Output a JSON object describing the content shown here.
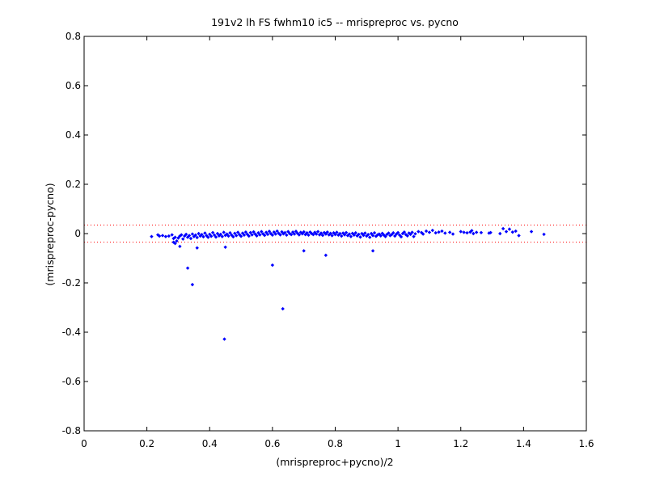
{
  "chart_data": {
    "type": "scatter",
    "title": "191v2 lh FS fwhm10 ic5 -- mrispreproc vs. pycno",
    "xlabel": "(mrispreproc+pycno)/2",
    "ylabel": "(mrispreproc-pycno)",
    "xlim": [
      0,
      1.6
    ],
    "ylim": [
      -0.8,
      0.8
    ],
    "xticks": [
      "0",
      "0.2",
      "0.4",
      "0.6",
      "0.8",
      "1",
      "1.2",
      "1.4",
      "1.6"
    ],
    "yticks": [
      "0.8",
      "0.6",
      "0.4",
      "0.2",
      "0",
      "-0.2",
      "-0.4",
      "-0.6",
      "-0.8"
    ],
    "grid": false,
    "marker_color": "#0000ff",
    "reference_line_color": "#ff0000",
    "reference_lines": [
      0.035,
      -0.035
    ],
    "series": [
      {
        "points": [
          [
            0.215,
            -0.012
          ],
          [
            0.235,
            -0.005
          ],
          [
            0.24,
            -0.01
          ],
          [
            0.25,
            -0.008
          ],
          [
            0.26,
            -0.012
          ],
          [
            0.27,
            -0.01
          ],
          [
            0.28,
            -0.005
          ],
          [
            0.285,
            -0.02
          ],
          [
            0.29,
            -0.015
          ],
          [
            0.295,
            -0.03
          ],
          [
            0.3,
            -0.018
          ],
          [
            0.305,
            -0.01
          ],
          [
            0.31,
            -0.005
          ],
          [
            0.315,
            -0.022
          ],
          [
            0.32,
            -0.01
          ],
          [
            0.325,
            -0.003
          ],
          [
            0.33,
            -0.015
          ],
          [
            0.335,
            -0.008
          ],
          [
            0.34,
            -0.02
          ],
          [
            0.345,
            -0.002
          ],
          [
            0.35,
            -0.012
          ],
          [
            0.355,
            -0.006
          ],
          [
            0.36,
            -0.016
          ],
          [
            0.365,
            0.0
          ],
          [
            0.37,
            -0.01
          ],
          [
            0.375,
            -0.004
          ],
          [
            0.38,
            -0.013
          ],
          [
            0.385,
            0.002
          ],
          [
            0.39,
            -0.008
          ],
          [
            0.395,
            -0.015
          ],
          [
            0.4,
            -0.003
          ],
          [
            0.405,
            -0.011
          ],
          [
            0.41,
            0.004
          ],
          [
            0.415,
            -0.006
          ],
          [
            0.42,
            -0.014
          ],
          [
            0.425,
            0.0
          ],
          [
            0.43,
            -0.009
          ],
          [
            0.435,
            -0.003
          ],
          [
            0.44,
            -0.012
          ],
          [
            0.445,
            0.005
          ],
          [
            0.45,
            -0.007
          ],
          [
            0.455,
            -0.002
          ],
          [
            0.46,
            -0.01
          ],
          [
            0.465,
            0.003
          ],
          [
            0.47,
            -0.006
          ],
          [
            0.475,
            -0.013
          ],
          [
            0.48,
            0.001
          ],
          [
            0.485,
            -0.008
          ],
          [
            0.49,
            0.005
          ],
          [
            0.495,
            -0.004
          ],
          [
            0.5,
            -0.011
          ],
          [
            0.505,
            0.002
          ],
          [
            0.51,
            -0.006
          ],
          [
            0.515,
            0.006
          ],
          [
            0.52,
            -0.003
          ],
          [
            0.525,
            -0.01
          ],
          [
            0.53,
            0.004
          ],
          [
            0.535,
            -0.005
          ],
          [
            0.54,
            0.007
          ],
          [
            0.545,
            -0.002
          ],
          [
            0.55,
            -0.009
          ],
          [
            0.555,
            0.003
          ],
          [
            0.56,
            -0.005
          ],
          [
            0.565,
            0.008
          ],
          [
            0.57,
            -0.001
          ],
          [
            0.575,
            -0.007
          ],
          [
            0.58,
            0.005
          ],
          [
            0.585,
            -0.003
          ],
          [
            0.59,
            0.009
          ],
          [
            0.595,
            0.0
          ],
          [
            0.6,
            -0.006
          ],
          [
            0.605,
            0.006
          ],
          [
            0.61,
            -0.002
          ],
          [
            0.615,
            0.01
          ],
          [
            0.62,
            0.001
          ],
          [
            0.625,
            -0.005
          ],
          [
            0.63,
            0.007
          ],
          [
            0.635,
            -0.001
          ],
          [
            0.64,
            0.004
          ],
          [
            0.645,
            -0.006
          ],
          [
            0.65,
            0.008
          ],
          [
            0.655,
            0.0
          ],
          [
            0.66,
            -0.004
          ],
          [
            0.665,
            0.006
          ],
          [
            0.67,
            -0.002
          ],
          [
            0.675,
            0.009
          ],
          [
            0.68,
            0.001
          ],
          [
            0.685,
            -0.005
          ],
          [
            0.69,
            0.005
          ],
          [
            0.695,
            -0.001
          ],
          [
            0.7,
            0.007
          ],
          [
            0.705,
            -0.004
          ],
          [
            0.71,
            0.003
          ],
          [
            0.715,
            -0.006
          ],
          [
            0.72,
            0.006
          ],
          [
            0.725,
            0.0
          ],
          [
            0.73,
            -0.004
          ],
          [
            0.735,
            0.005
          ],
          [
            0.74,
            -0.002
          ],
          [
            0.745,
            0.008
          ],
          [
            0.75,
            -0.005
          ],
          [
            0.755,
            0.002
          ],
          [
            0.76,
            -0.007
          ],
          [
            0.765,
            0.004
          ],
          [
            0.77,
            -0.002
          ],
          [
            0.775,
            0.006
          ],
          [
            0.78,
            -0.005
          ],
          [
            0.785,
            0.001
          ],
          [
            0.79,
            -0.008
          ],
          [
            0.795,
            0.003
          ],
          [
            0.8,
            -0.004
          ],
          [
            0.805,
            0.005
          ],
          [
            0.81,
            -0.006
          ],
          [
            0.815,
            0.0
          ],
          [
            0.82,
            -0.01
          ],
          [
            0.825,
            0.002
          ],
          [
            0.83,
            -0.005
          ],
          [
            0.835,
            0.004
          ],
          [
            0.84,
            -0.008
          ],
          [
            0.845,
            -0.002
          ],
          [
            0.85,
            -0.012
          ],
          [
            0.855,
            0.001
          ],
          [
            0.86,
            -0.006
          ],
          [
            0.865,
            0.003
          ],
          [
            0.87,
            -0.009
          ],
          [
            0.875,
            -0.003
          ],
          [
            0.88,
            -0.014
          ],
          [
            0.885,
            0.0
          ],
          [
            0.89,
            -0.007
          ],
          [
            0.895,
            0.002
          ],
          [
            0.9,
            -0.01
          ],
          [
            0.905,
            -0.004
          ],
          [
            0.91,
            -0.015
          ],
          [
            0.915,
            0.0
          ],
          [
            0.92,
            -0.008
          ],
          [
            0.925,
            0.003
          ],
          [
            0.93,
            -0.011
          ],
          [
            0.935,
            -0.005
          ],
          [
            0.94,
            -0.002
          ],
          [
            0.945,
            -0.009
          ],
          [
            0.95,
            0.001
          ],
          [
            0.955,
            -0.006
          ],
          [
            0.96,
            -0.012
          ],
          [
            0.965,
            -0.003
          ],
          [
            0.97,
            0.002
          ],
          [
            0.975,
            -0.008
          ],
          [
            0.98,
            -0.004
          ],
          [
            0.985,
            0.003
          ],
          [
            0.99,
            -0.01
          ],
          [
            0.995,
            -0.002
          ],
          [
            1.0,
            0.004
          ],
          [
            1.005,
            -0.006
          ],
          [
            1.01,
            -0.013
          ],
          [
            1.015,
            0.0
          ],
          [
            1.02,
            0.006
          ],
          [
            1.025,
            -0.004
          ],
          [
            1.03,
            -0.009
          ],
          [
            1.035,
            0.002
          ],
          [
            1.04,
            -0.003
          ],
          [
            1.045,
            0.005
          ],
          [
            1.05,
            -0.012
          ],
          [
            1.055,
            -0.001
          ],
          [
            1.065,
            0.008
          ],
          [
            1.075,
            0.004
          ],
          [
            1.08,
            -0.002
          ],
          [
            1.09,
            0.01
          ],
          [
            1.1,
            0.005
          ],
          [
            1.11,
            0.013
          ],
          [
            1.12,
            0.003
          ],
          [
            1.13,
            0.006
          ],
          [
            1.14,
            0.01
          ],
          [
            1.15,
            0.002
          ],
          [
            1.165,
            0.005
          ],
          [
            1.175,
            -0.002
          ],
          [
            1.2,
            0.008
          ],
          [
            1.21,
            0.005
          ],
          [
            1.22,
            0.003
          ],
          [
            1.23,
            0.006
          ],
          [
            1.235,
            0.012
          ],
          [
            1.24,
            0.0
          ],
          [
            1.25,
            0.005
          ],
          [
            1.265,
            0.004
          ],
          [
            1.29,
            0.002
          ],
          [
            1.295,
            0.004
          ],
          [
            1.325,
            0.0
          ],
          [
            1.335,
            0.02
          ],
          [
            1.345,
            0.008
          ],
          [
            1.355,
            0.018
          ],
          [
            1.365,
            0.006
          ],
          [
            1.375,
            0.01
          ],
          [
            1.385,
            -0.008
          ],
          [
            1.425,
            0.008
          ],
          [
            1.465,
            -0.003
          ],
          [
            0.29,
            -0.04
          ],
          [
            0.305,
            -0.052
          ],
          [
            0.285,
            -0.035
          ],
          [
            0.36,
            -0.058
          ],
          [
            0.45,
            -0.055
          ],
          [
            0.33,
            -0.14
          ],
          [
            0.345,
            -0.207
          ],
          [
            0.6,
            -0.128
          ],
          [
            0.633,
            -0.305
          ],
          [
            0.447,
            -0.428
          ],
          [
            0.7,
            -0.07
          ],
          [
            0.77,
            -0.088
          ],
          [
            0.92,
            -0.07
          ]
        ]
      }
    ]
  }
}
